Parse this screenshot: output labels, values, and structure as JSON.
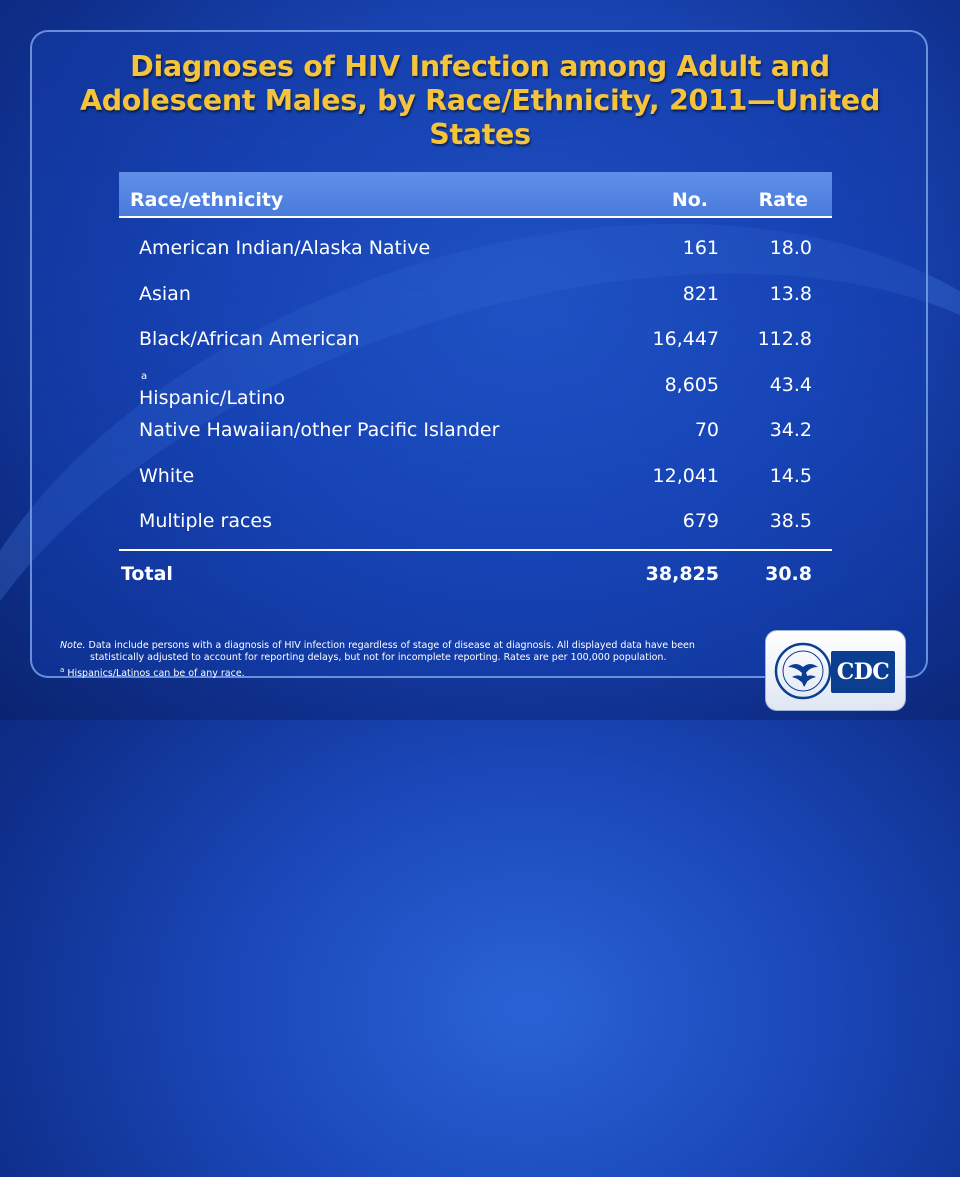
{
  "slide": {
    "title": "Diagnoses of HIV Infection among Adult and Adolescent Males, by Race/Ethnicity, 2011—United States"
  },
  "table": {
    "headers": {
      "race": "Race/ethnicity",
      "no": "No.",
      "rate": "Rate"
    },
    "rows": [
      {
        "race": "American Indian/Alaska Native",
        "no": "161",
        "rate": "18.0"
      },
      {
        "race": "Asian",
        "no": "821",
        "rate": "13.8"
      },
      {
        "race": "Black/African American",
        "no": "16,447",
        "rate": "112.8"
      },
      {
        "race": "Hispanic/Latino",
        "footnote": "a",
        "no": "8,605",
        "rate": "43.4"
      },
      {
        "race": "Native Hawaiian/other Pacific Islander",
        "no": "70",
        "rate": "34.2"
      },
      {
        "race": "White",
        "no": "12,041",
        "rate": "14.5"
      },
      {
        "race": "Multiple races",
        "no": "679",
        "rate": "38.5"
      }
    ],
    "total": {
      "label": "Total",
      "no": "38,825",
      "rate": "30.8"
    }
  },
  "note": {
    "label": "Note.",
    "text": "Data include persons with a diagnosis of HIV infection regardless of stage of disease at diagnosis. All displayed data have been",
    "text_cont": "statistically adjusted to account for reporting delays, but not for incomplete reporting. Rates are per 100,000 population.",
    "footnote_marker": "a",
    "footnote": "Hispanics/Latinos can be of any race."
  },
  "logo": {
    "text": "CDC",
    "icon": "hhs-eagle-seal-icon"
  },
  "colors": {
    "title": "#f6c43a",
    "header_band": "#4a7bdc",
    "background": "#1a47b8"
  }
}
